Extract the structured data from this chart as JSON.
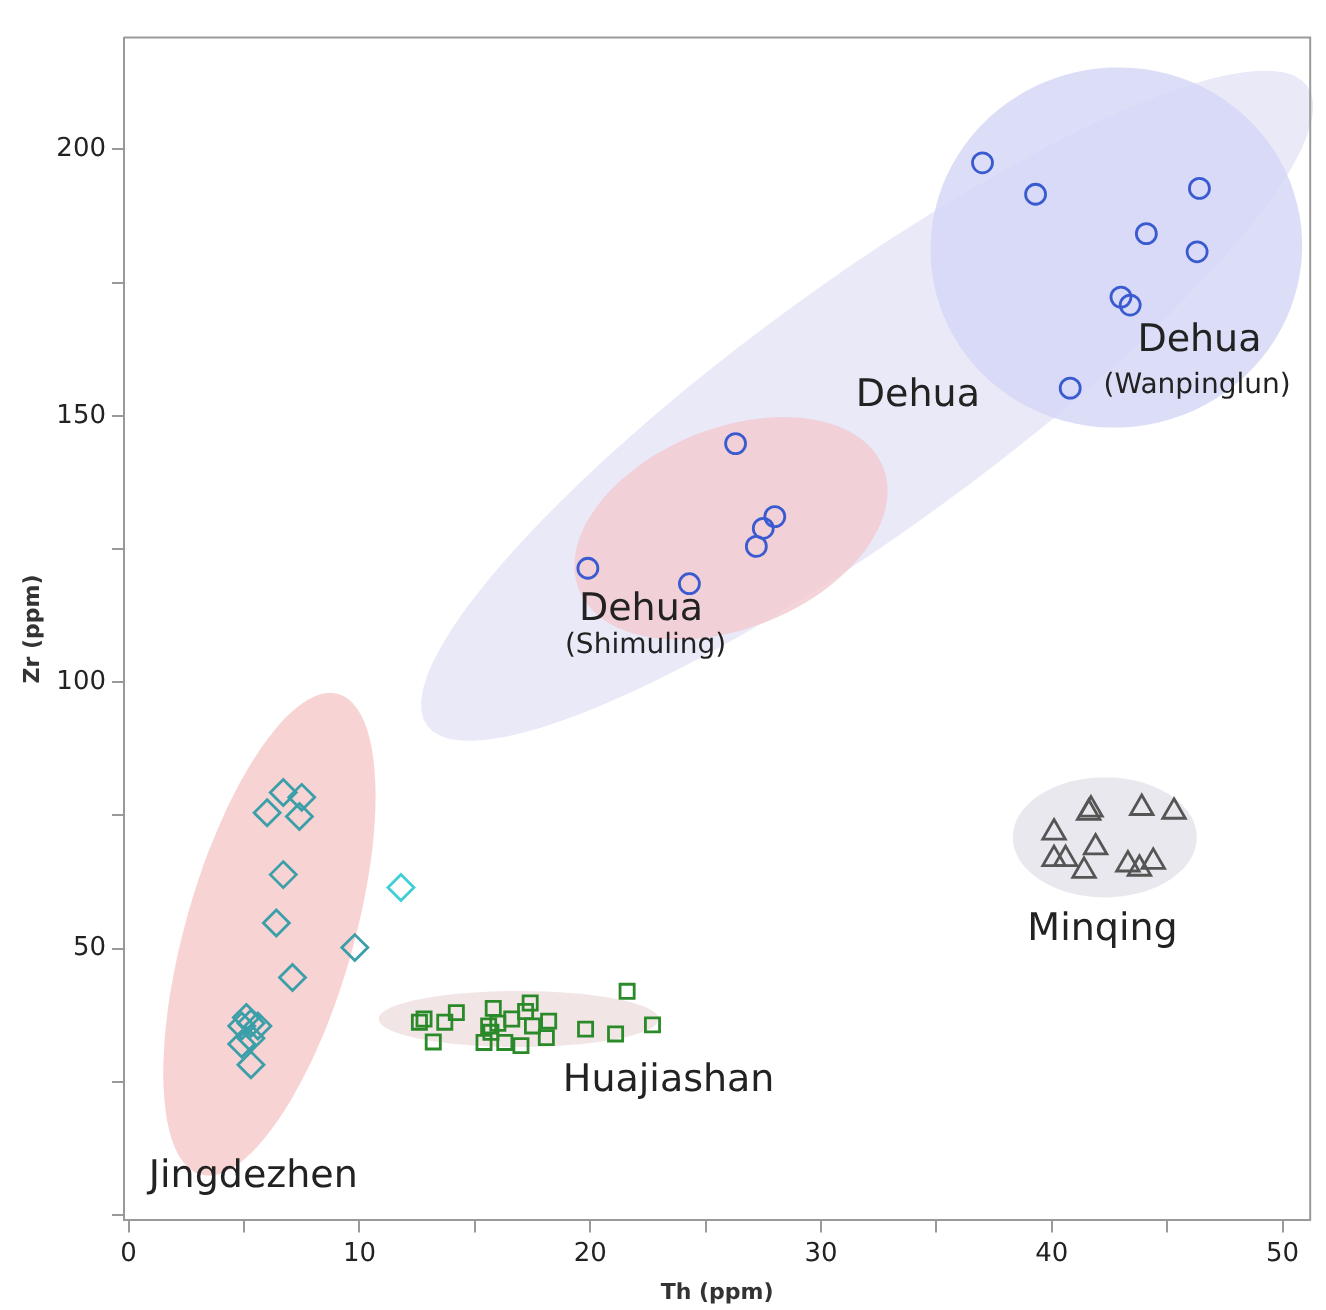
{
  "chart_data": {
    "type": "scatter",
    "xlabel": "Th (ppm)",
    "ylabel": "Zr (ppm)",
    "xlim": [
      -0.2,
      51.2
    ],
    "ylim": [
      -1,
      221
    ],
    "xticks": [
      0,
      {
        "value": 5,
        "label": null
      },
      10,
      {
        "value": 15,
        "label": null
      },
      20,
      {
        "value": 25,
        "label": null
      },
      30,
      {
        "value": 35,
        "label": null
      },
      40,
      {
        "value": 45,
        "label": null
      },
      50
    ],
    "yticks": [
      {
        "value": 0,
        "label": null
      },
      {
        "value": 25,
        "label": null
      },
      50,
      {
        "value": 75,
        "label": null
      },
      100,
      {
        "value": 125,
        "label": null
      },
      150,
      {
        "value": 175,
        "label": null
      },
      200
    ],
    "grid": false,
    "legend": false,
    "series": [
      {
        "color": "#3a5bd0",
        "marker": "circle",
        "x": [
          37.0,
          39.3,
          46.4,
          44.1,
          46.3,
          43.0,
          43.4,
          40.8
        ],
        "values": [
          197.5,
          191.6,
          192.7,
          184.2,
          180.8,
          172.3,
          170.8,
          155.2
        ]
      },
      {
        "color": "#3a5bd0",
        "marker": "circle",
        "x": [
          26.3,
          28.0,
          27.5,
          27.2,
          19.9,
          24.3
        ],
        "values": [
          144.8,
          131.1,
          128.9,
          125.5,
          121.4,
          118.5
        ]
      },
      {
        "color": "#3a9fa8",
        "marker": "diamond",
        "x": [
          6.7,
          7.5,
          6.0,
          7.4,
          6.7,
          6.4,
          9.8,
          7.1,
          5.1,
          5.3,
          4.9,
          5.6,
          5.3,
          4.9,
          5.3
        ],
        "values": [
          79.3,
          78.4,
          75.5,
          74.8,
          63.9,
          54.8,
          50.2,
          44.6,
          37.1,
          36.0,
          35.5,
          35.5,
          33.2,
          32.1,
          28.2
        ]
      },
      {
        "color": "#3fcfd6",
        "marker": "diamond",
        "x": [
          11.8
        ],
        "values": [
          61.5
        ]
      },
      {
        "color": "#2a8a2a",
        "marker": "square",
        "x": [
          21.6,
          12.8,
          13.7,
          14.2,
          13.2,
          15.8,
          16.6,
          17.4,
          17.2,
          18.2,
          18.1,
          17.5,
          17.0,
          16.3,
          15.7,
          15.4,
          15.6,
          19.8,
          21.1,
          22.7,
          12.6,
          16.0
        ],
        "values": [
          42.0,
          36.8,
          36.2,
          38.0,
          32.5,
          38.8,
          36.8,
          39.8,
          38.2,
          36.4,
          33.3,
          35.5,
          31.8,
          32.4,
          34.3,
          32.4,
          35.5,
          34.9,
          34.0,
          35.7,
          36.2,
          36.0
        ]
      },
      {
        "color": "#555555",
        "marker": "triangle",
        "x": [
          41.7,
          43.9,
          45.3,
          40.1,
          40.1,
          40.6,
          41.9,
          41.4,
          43.3,
          43.8,
          44.4,
          41.6
        ],
        "values": [
          76.1,
          76.4,
          75.7,
          71.8,
          66.8,
          66.8,
          69.0,
          64.6,
          65.8,
          65.0,
          66.3,
          75.5
        ]
      }
    ],
    "annotations": [
      "Dehua",
      "Dehua",
      "(Wanpinglun)",
      "Dehua",
      "(Shimuling)",
      "Minqing",
      "Huajiashan",
      "Jingdezhen"
    ]
  }
}
